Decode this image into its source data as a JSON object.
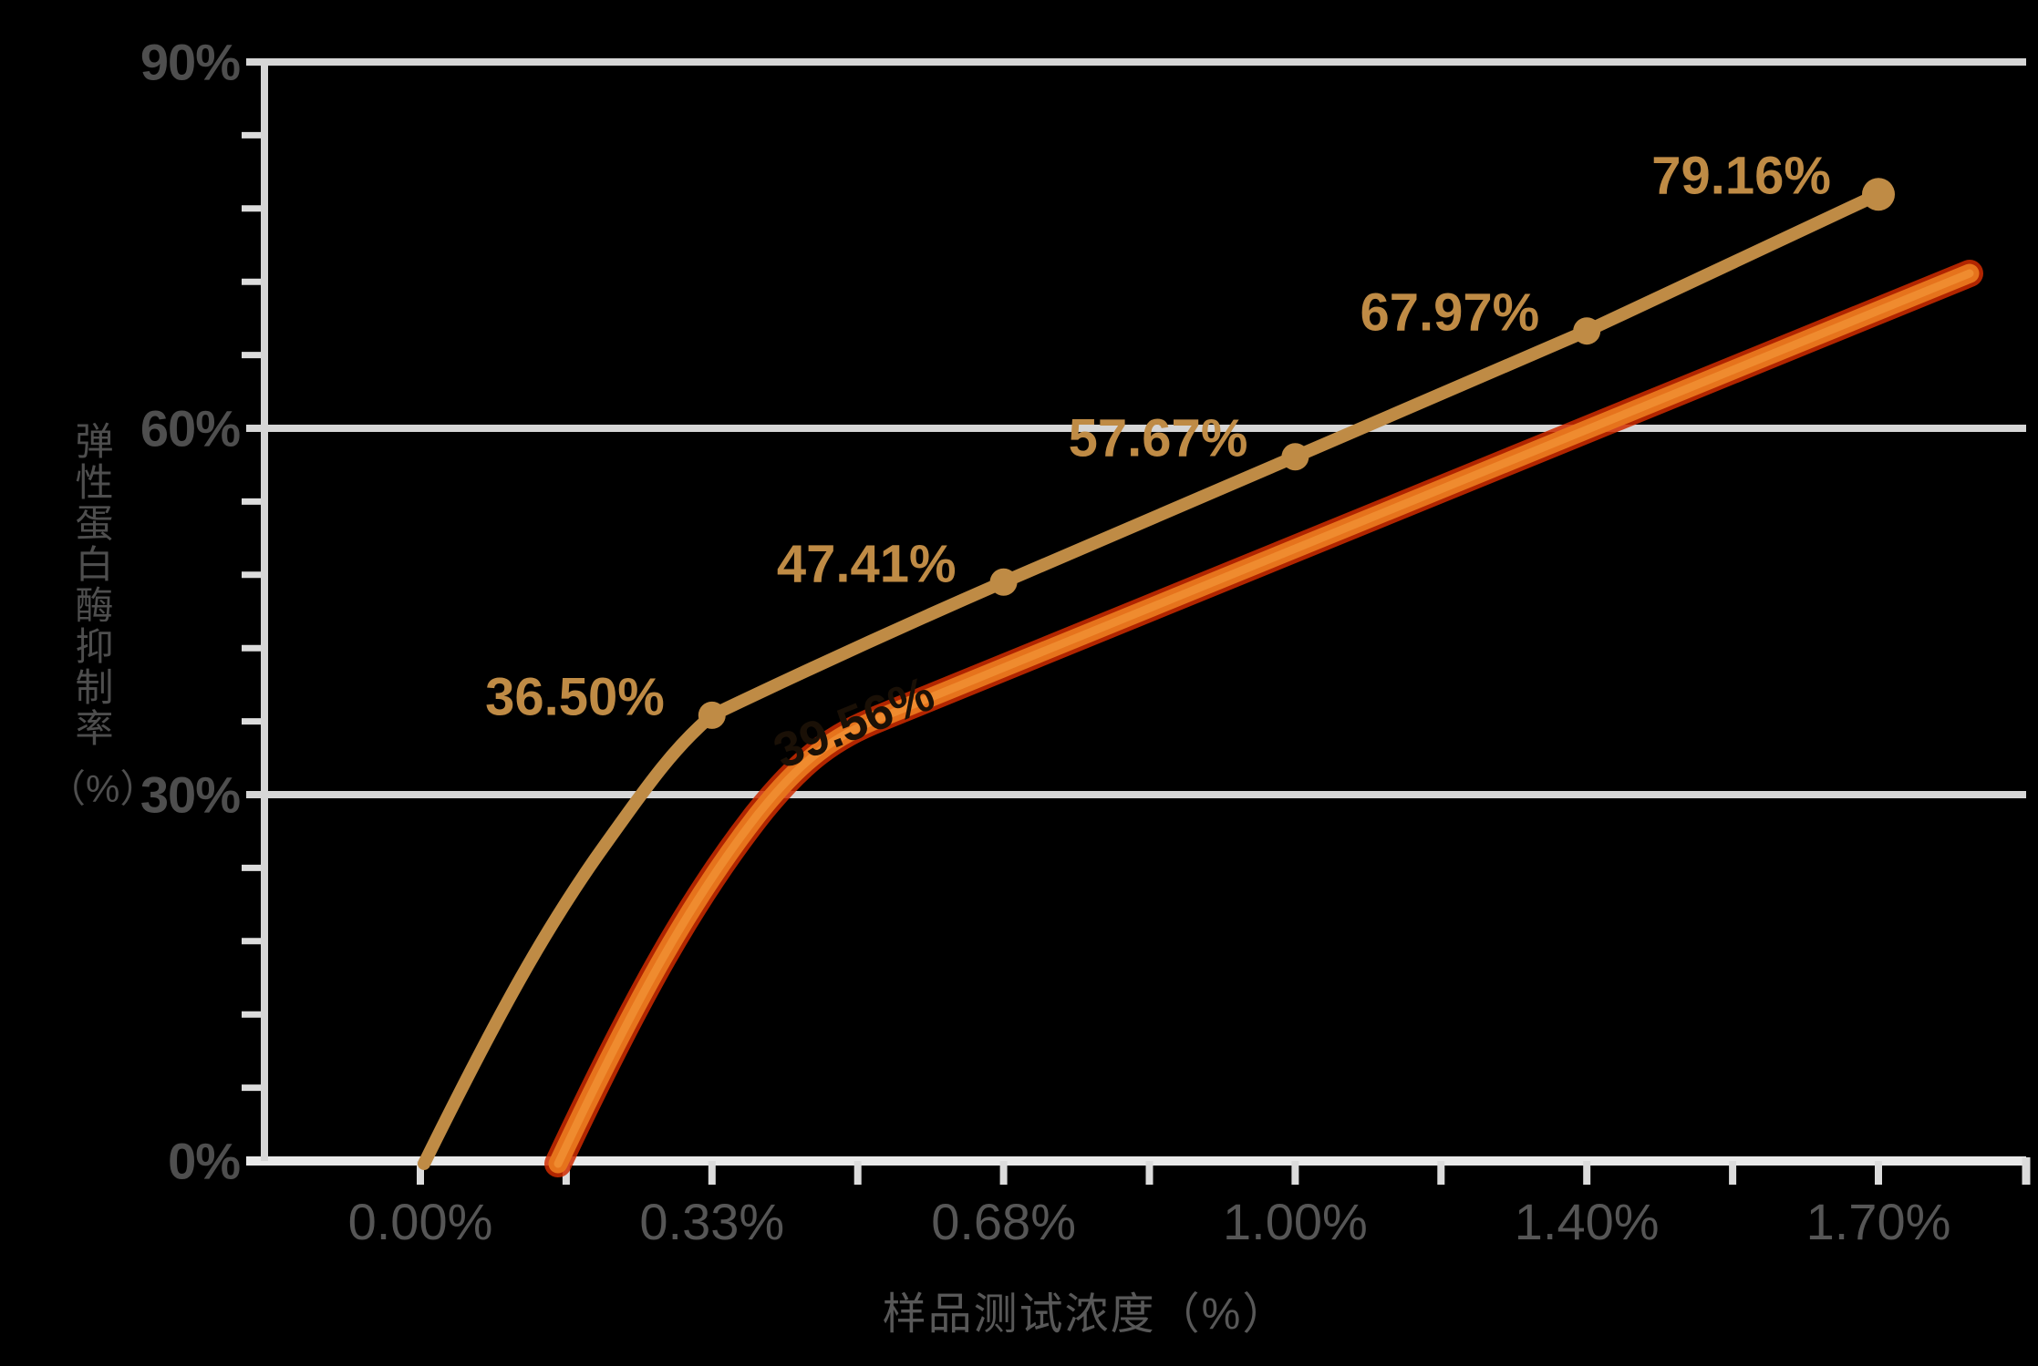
{
  "chart_data": {
    "type": "line",
    "title": "",
    "xlabel": "样品测试浓度（%）",
    "ylabel": "弹性蛋白酶抑制率（%）",
    "ylabel_vertical_text": "弹性蛋白酶抑制率",
    "ylabel_unit": "（%）",
    "categories": [
      "0.00%",
      "0.33%",
      "0.68%",
      "1.00%",
      "1.40%",
      "1.70%"
    ],
    "y_tick_labels": [
      "90%",
      "60%",
      "30%",
      "0%"
    ],
    "ylim": [
      0,
      90
    ],
    "y_major_step": 30,
    "y_minor_step": 6,
    "grid": "horizontal-only",
    "legend": "none",
    "series": [
      {
        "name": "gold-sample-line",
        "color": "#bf8b45",
        "values": [
          0,
          36.5,
          47.41,
          57.67,
          67.97,
          79.16
        ],
        "point_labels": [
          "",
          "36.50%",
          "47.41%",
          "57.67%",
          "67.97%",
          "79.16%"
        ]
      },
      {
        "name": "orange-sample-line",
        "color": "#e6731c",
        "estimated_values": [
          null,
          20.5,
          39.56,
          50.3,
          59.9,
          69.5
        ],
        "starts_between": "0.00% and 0.33%",
        "extends_past_last_category_to_value": 72.7,
        "hidden_point_label": "39.56%"
      }
    ]
  },
  "colors": {
    "background": "#000000",
    "gridline": "#d6d6d6",
    "axis_line": "#e9e9e9",
    "tick": "#dcdcdc",
    "axis_text": "#4e4e4e",
    "gold": "#bf8b45",
    "orange_core": "#e6731c",
    "orange_fringe": "#d02c00",
    "orange_highlight": "#f29537",
    "ghost_label_color": "#1a1006"
  }
}
